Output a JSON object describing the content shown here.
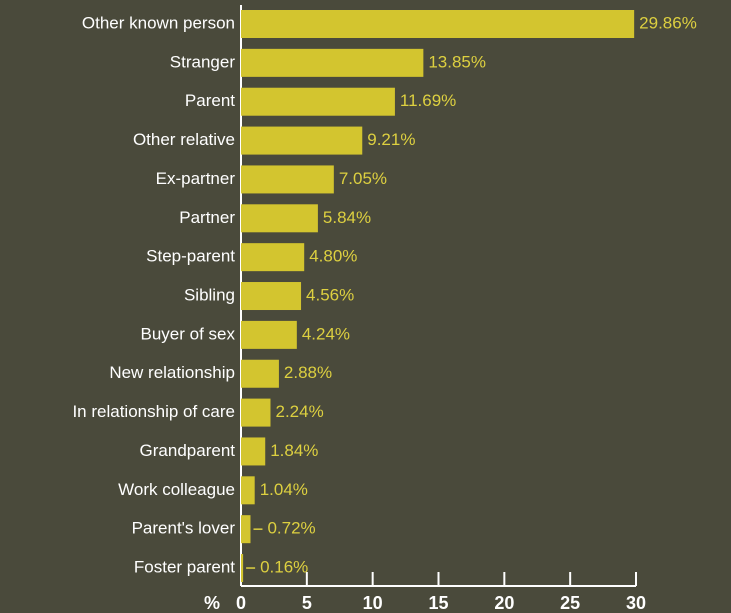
{
  "chart_data": {
    "type": "hbar",
    "categories": [
      "Other known person",
      "Stranger",
      "Parent",
      "Other relative",
      "Ex-partner",
      "Partner",
      "Step-parent",
      "Sibling",
      "Buyer of sex",
      "New relationship",
      "In relationship of care",
      "Grandparent",
      "Work colleague",
      "Parent's lover",
      "Foster parent"
    ],
    "values": [
      29.86,
      13.85,
      11.69,
      9.21,
      7.05,
      5.84,
      4.8,
      4.56,
      4.24,
      2.88,
      2.24,
      1.84,
      1.04,
      0.72,
      0.16
    ],
    "value_labels": [
      "29.86%",
      "13.85%",
      "11.69%",
      "9.21%",
      "7.05%",
      "5.84%",
      "4.80%",
      "4.56%",
      "4.24%",
      "2.88%",
      "2.24%",
      "1.84%",
      "1.04%",
      "0.72%",
      "0.16%"
    ],
    "color": "#d3c52f",
    "x_label": "%",
    "xlim": [
      0,
      30
    ],
    "xticks": [
      0,
      5,
      10,
      15,
      20,
      25,
      30
    ]
  }
}
